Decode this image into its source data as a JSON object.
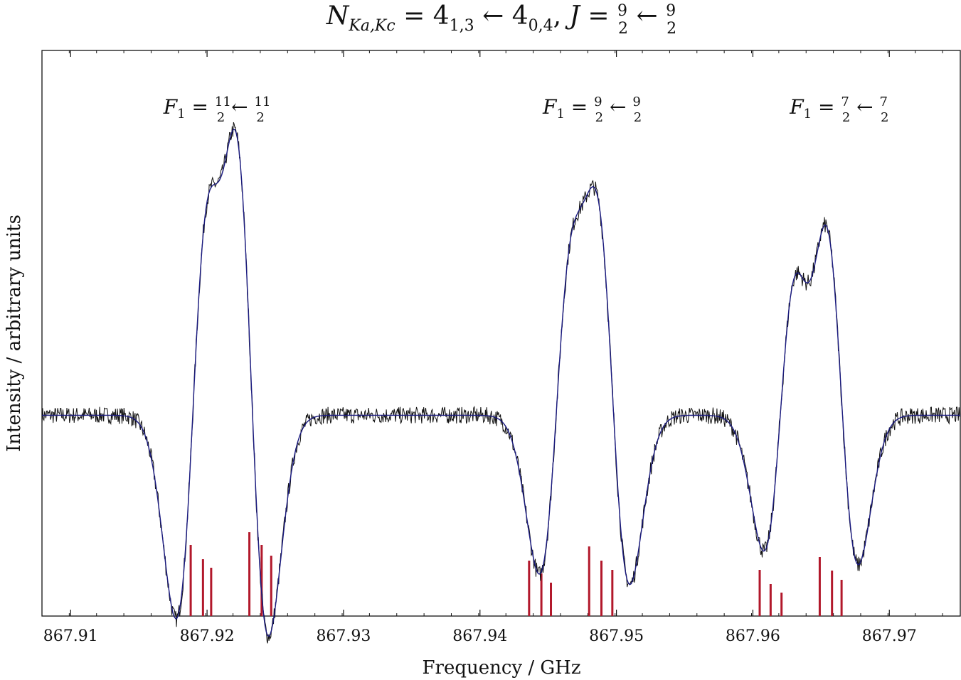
{
  "chart_data": {
    "type": "line",
    "title": {
      "N": "N",
      "sub": "Ka,Kc",
      "eq": " = 4",
      "upper_sub": "1,3",
      "arrow": " ← 4",
      "lower_sub": "0,4",
      "comma": ", ",
      "J": "J",
      "J_eq": " = ",
      "J_upper_num": "9",
      "J_upper_den": "2",
      "J_arrow": " ← ",
      "J_lower_num": "9",
      "J_lower_den": "2"
    },
    "xlabel": "Frequency / GHz",
    "ylabel": "Intensity / arbitrary units",
    "xlim": [
      867.9079,
      867.9752
    ],
    "ylim": [
      0,
      1
    ],
    "x_ticks": [
      867.91,
      867.92,
      867.93,
      867.94,
      867.95,
      867.96,
      867.97
    ],
    "x_tick_labels": [
      "867.91",
      "867.92",
      "867.93",
      "867.94",
      "867.95",
      "867.96",
      "867.97"
    ],
    "grid": false,
    "annotations": [
      {
        "sym": "F",
        "sub": "1",
        "eq": " = ",
        "num1": "11",
        "den1": "2",
        "arrow": " ← ",
        "num2": "11",
        "den2": "2",
        "x": 867.9168
      },
      {
        "sym": "F",
        "sub": "1",
        "eq": " = ",
        "num1": "9",
        "den1": "2",
        "arrow": " ← ",
        "num2": "9",
        "den2": "2",
        "x": 867.9446
      },
      {
        "sym": "F",
        "sub": "1",
        "eq": " = ",
        "num1": "7",
        "den1": "2",
        "arrow": " ← ",
        "num2": "7",
        "den2": "2",
        "x": 867.9627
      }
    ],
    "baseline": 0.355,
    "lines": [
      {
        "x0": 867.92,
        "a": 0.72,
        "w": 0.0014
      },
      {
        "x0": 867.9222,
        "a": 0.8,
        "w": 0.0014
      },
      {
        "x0": 867.9466,
        "a": 0.55,
        "w": 0.0014
      },
      {
        "x0": 867.9487,
        "a": 0.6,
        "w": 0.0014
      },
      {
        "x0": 867.9631,
        "a": 0.49,
        "w": 0.0014
      },
      {
        "x0": 867.9654,
        "a": 0.55,
        "w": 0.0014
      }
    ],
    "series": [
      {
        "name": "",
        "kind": "measured",
        "color": "#111111"
      },
      {
        "name": "",
        "kind": "fit",
        "color": "#1a1a80"
      }
    ],
    "stick_spectrum": {
      "color": "#b2182b",
      "x": [
        867.9188,
        867.9197,
        867.9203,
        867.9231,
        867.924,
        867.9247,
        867.9436,
        867.9445,
        867.9452,
        867.948,
        867.9489,
        867.9497,
        867.9605,
        867.9613,
        867.9621,
        867.9649,
        867.9658,
        867.9665
      ],
      "values": [
        1.0,
        0.8,
        0.68,
        1.18,
        1.0,
        0.85,
        0.78,
        0.6,
        0.47,
        0.98,
        0.78,
        0.65,
        0.65,
        0.45,
        0.33,
        0.83,
        0.64,
        0.51
      ]
    }
  }
}
